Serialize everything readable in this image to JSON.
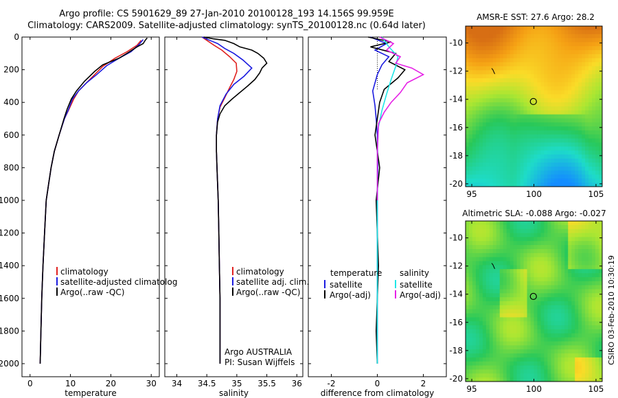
{
  "header": {
    "title_line1": "Argo profile: CS 5901629_89 27-Jan-2010 20100128_193 14.156S 99.959E",
    "title_line2": "Climatology: CARS2009. Satellite-adjusted climatology: synTS_20100128.nc (0.64d later)"
  },
  "credit": "CSIRO 03-Feb-2010 10:30:19",
  "colors": {
    "climatology": "#e0201e",
    "satellite": "#1a1adf",
    "argo": "#000000",
    "sat_salinity": "#1ee6e6",
    "argo_salinity": "#e61ee6"
  },
  "chart_data": [
    {
      "type": "line",
      "name": "temperature-panel",
      "xlabel": "temperature",
      "ylabel": "",
      "xlim": [
        -2,
        32
      ],
      "ylim": [
        2080,
        0
      ],
      "xticks": [
        0,
        10,
        20,
        30
      ],
      "yticks": [
        0,
        200,
        400,
        600,
        800,
        1000,
        1200,
        1400,
        1600,
        1800,
        2000
      ],
      "series": [
        {
          "name": "climatology",
          "color": "#e0201e",
          "x": [
            27.5,
            26.5,
            24.0,
            21.0,
            18.0,
            16.0,
            14.0,
            12.0,
            10.8,
            9.5,
            8.5,
            7.2,
            6.0,
            5.2,
            4.6,
            4.0,
            3.6,
            3.2,
            2.9,
            2.7,
            2.5
          ],
          "y": [
            20,
            50,
            90,
            130,
            180,
            230,
            280,
            330,
            380,
            450,
            500,
            600,
            700,
            800,
            900,
            1000,
            1200,
            1400,
            1600,
            1800,
            2000
          ]
        },
        {
          "name": "satellite-adjusted climatology",
          "color": "#1a1adf",
          "x": [
            28.0,
            27.0,
            25.0,
            22.0,
            19.0,
            16.5,
            14.0,
            12.0,
            10.5,
            9.4,
            8.5,
            7.2,
            6.0,
            5.2,
            4.6,
            4.0,
            3.6,
            3.2,
            2.9,
            2.7,
            2.5
          ],
          "y": [
            15,
            45,
            90,
            130,
            175,
            230,
            280,
            330,
            380,
            450,
            500,
            600,
            700,
            800,
            900,
            1000,
            1200,
            1400,
            1600,
            1800,
            2000
          ]
        },
        {
          "name": "Argo(..raw -QC)",
          "color": "#000000",
          "x": [
            29.0,
            28.5,
            28.0,
            26.5,
            24.0,
            22.0,
            18.0,
            16.0,
            13.5,
            11.5,
            10.2,
            9.2,
            8.4,
            7.2,
            6.0,
            5.2,
            4.6,
            4.0,
            3.6,
            3.2,
            2.9,
            2.7,
            2.5
          ],
          "y": [
            5,
            20,
            40,
            60,
            100,
            130,
            170,
            210,
            270,
            330,
            380,
            440,
            500,
            600,
            700,
            800,
            900,
            1000,
            1200,
            1400,
            1600,
            1800,
            2000
          ]
        }
      ],
      "legend": {
        "placement": "bottom-center",
        "entries": [
          "climatology",
          "satellite-adjusted climatolog",
          "Argo(..raw -QC)"
        ]
      }
    },
    {
      "type": "line",
      "name": "salinity-panel",
      "xlabel": "salinity",
      "ylabel": "",
      "xlim": [
        33.8,
        36.1
      ],
      "ylim": [
        2080,
        0
      ],
      "xticks": [
        34,
        34.5,
        35,
        35.5,
        36
      ],
      "yticks": [
        0,
        200,
        400,
        600,
        800,
        1000,
        1200,
        1400,
        1600,
        1800,
        2000
      ],
      "series": [
        {
          "name": "climatology",
          "color": "#e0201e",
          "x": [
            34.42,
            34.5,
            34.62,
            34.75,
            34.88,
            34.99,
            35.0,
            34.95,
            34.88,
            34.8,
            34.72,
            34.68,
            34.66,
            34.66,
            34.67,
            34.68,
            34.69,
            34.7,
            34.71,
            34.72,
            34.72
          ],
          "y": [
            0,
            20,
            50,
            80,
            120,
            160,
            210,
            260,
            310,
            370,
            430,
            500,
            600,
            700,
            800,
            900,
            1000,
            1200,
            1400,
            1600,
            2000
          ]
        },
        {
          "name": "satellite adj. clim.",
          "color": "#1a1adf",
          "x": [
            34.42,
            34.55,
            34.68,
            34.8,
            34.95,
            35.1,
            35.25,
            35.12,
            34.95,
            34.82,
            34.72,
            34.68,
            34.66,
            34.66,
            34.67,
            34.68,
            34.69,
            34.7,
            34.71,
            34.72,
            34.72
          ],
          "y": [
            0,
            20,
            40,
            70,
            100,
            140,
            190,
            240,
            290,
            350,
            420,
            500,
            600,
            700,
            800,
            900,
            1000,
            1200,
            1400,
            1600,
            2000
          ]
        },
        {
          "name": "Argo(..raw -QC)",
          "color": "#000000",
          "x": [
            34.45,
            34.6,
            34.8,
            34.95,
            35.05,
            35.25,
            35.35,
            35.45,
            35.5,
            35.42,
            35.38,
            35.3,
            35.18,
            35.05,
            34.92,
            34.8,
            34.72,
            34.68,
            34.66,
            34.66,
            34.67,
            34.68,
            34.69,
            34.7,
            34.71,
            34.72,
            34.72
          ],
          "y": [
            0,
            10,
            20,
            40,
            60,
            80,
            100,
            130,
            160,
            190,
            220,
            260,
            300,
            340,
            380,
            420,
            470,
            520,
            600,
            700,
            800,
            900,
            1000,
            1200,
            1400,
            1600,
            2000
          ]
        }
      ],
      "legend": {
        "placement": "bottom-center",
        "entries": [
          "climatology",
          "satellite adj. clim.",
          "Argo(..raw -QC)"
        ]
      },
      "annotations": [
        "Argo AUSTRALIA",
        "PI: Susan Wijffels"
      ]
    },
    {
      "type": "line",
      "name": "difference-panel",
      "xlabel": "difference from climatology",
      "ylabel": "",
      "xlim": [
        -3,
        3
      ],
      "ylim": [
        2080,
        0
      ],
      "xticks": [
        -2,
        0,
        2
      ],
      "yticks": [
        0,
        200,
        400,
        600,
        800,
        1000,
        1200,
        1400,
        1600,
        1800,
        2000
      ],
      "series": [
        {
          "name": "temperature satellite",
          "color": "#1a1adf",
          "x": [
            -0.3,
            0.4,
            -0.1,
            0.5,
            0.2,
            0.0,
            -0.2,
            -0.1,
            -0.05,
            0.0,
            0.02,
            0.0,
            0.0,
            0.0,
            0.0
          ],
          "y": [
            0,
            40,
            80,
            120,
            170,
            230,
            330,
            420,
            500,
            600,
            800,
            1000,
            1400,
            1800,
            2000
          ]
        },
        {
          "name": "temperature Argo(-adj)",
          "color": "#000000",
          "x": [
            -0.4,
            0.6,
            -0.3,
            0.8,
            0.5,
            1.2,
            0.9,
            0.3,
            0.1,
            0.0,
            -0.1,
            0.1,
            -0.05,
            0.05,
            -0.05,
            0.0
          ],
          "y": [
            0,
            30,
            60,
            100,
            150,
            200,
            250,
            320,
            400,
            500,
            600,
            800,
            1000,
            1400,
            1800,
            2000
          ]
        },
        {
          "name": "salinity satellite",
          "color": "#1ee6e6",
          "x": [
            0.2,
            0.5,
            0.9,
            0.8,
            0.6,
            0.4,
            0.2,
            0.05,
            0.0,
            0.0,
            0.0,
            0.0
          ],
          "y": [
            0,
            60,
            120,
            180,
            260,
            350,
            450,
            550,
            700,
            1000,
            1500,
            2000
          ]
        },
        {
          "name": "salinity Argo(-adj)",
          "color": "#e61ee6",
          "x": [
            0.1,
            0.7,
            0.4,
            1.0,
            0.8,
            1.5,
            2.0,
            1.3,
            1.0,
            0.6,
            0.3,
            0.05,
            0.0,
            0.0
          ],
          "y": [
            0,
            40,
            80,
            120,
            160,
            190,
            230,
            280,
            340,
            400,
            460,
            530,
            700,
            1000
          ]
        }
      ],
      "legend": {
        "placement": "bottom-center",
        "col1_header": "temperature",
        "col1_entries": [
          "satellite",
          "Argo(-adj)"
        ],
        "col2_header": "salinity",
        "col2_entries": [
          "satellite",
          "Argo(-adj)"
        ]
      }
    },
    {
      "type": "heatmap",
      "name": "sst-map",
      "title": "AMSR-E SST: 27.6 Argo: 28.2",
      "xlim": [
        94.5,
        105.5
      ],
      "ylim": [
        -20.2,
        -8.8
      ],
      "xticks": [
        95,
        100,
        105
      ],
      "yticks": [
        -10,
        -12,
        -14,
        -16,
        -18,
        -20
      ],
      "marker": {
        "lon": 99.959,
        "lat": -14.156
      }
    },
    {
      "type": "heatmap",
      "name": "sla-map",
      "title": "Altimetric SLA: -0.088 Argo: -0.027",
      "xlim": [
        94.5,
        105.5
      ],
      "ylim": [
        -20.2,
        -8.8
      ],
      "xticks": [
        95,
        100,
        105
      ],
      "yticks": [
        -10,
        -12,
        -14,
        -16,
        -18,
        -20
      ],
      "marker": {
        "lon": 99.959,
        "lat": -14.156
      }
    }
  ]
}
